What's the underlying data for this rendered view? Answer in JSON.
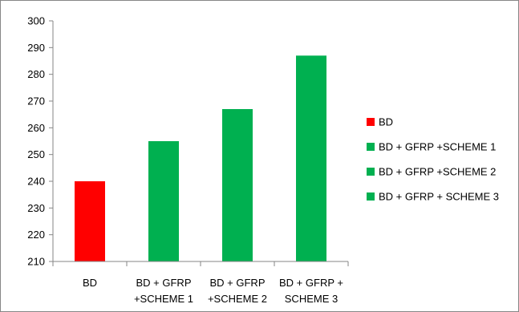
{
  "chart_data": {
    "type": "bar",
    "categories": [
      [
        "BD"
      ],
      [
        "BD + GFRP",
        "+SCHEME 1"
      ],
      [
        "BD + GFRP",
        "+SCHEME 2"
      ],
      [
        "BD + GFRP +",
        "SCHEME 3"
      ]
    ],
    "values": [
      240,
      255,
      267,
      287
    ],
    "colors": [
      "#ff0000",
      "#00b050",
      "#00b050",
      "#00b050"
    ],
    "ylim": [
      210,
      300
    ],
    "yticks": [
      210,
      220,
      230,
      240,
      250,
      260,
      270,
      280,
      290,
      300
    ],
    "grid": false,
    "legend_position": "right",
    "legend": [
      {
        "label": "BD",
        "color": "#ff0000"
      },
      {
        "label": "BD + GFRP +SCHEME 1",
        "color": "#00b050"
      },
      {
        "label": "BD + GFRP +SCHEME 2",
        "color": "#00b050"
      },
      {
        "label": "BD + GFRP + SCHEME 3",
        "color": "#00b050"
      }
    ]
  }
}
